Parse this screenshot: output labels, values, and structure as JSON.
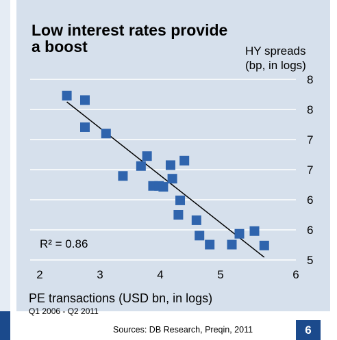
{
  "title": "Low interest rates provide a boost",
  "colors": {
    "panel": "#d6e0ec",
    "marker": "#2f64ad",
    "navy": "#1b4a8c",
    "grid": "#ffffff",
    "trend": "#000000"
  },
  "footer": {
    "period": "Q1 2006 - Q2 2011",
    "sources": "Sources: DB Research, Preqin, 2011",
    "page_number": "6"
  },
  "chart_data": {
    "type": "scatter",
    "title": "Low interest rates provide a boost",
    "xlabel": "PE transactions (USD bn, in logs)",
    "ylabel": "HY spreads\n(bp, in logs)",
    "xlim": [
      2,
      6
    ],
    "x_ticks": [
      "2",
      "3",
      "4",
      "5",
      "6"
    ],
    "y_ticks": [
      "8",
      "8",
      "7",
      "7",
      "6",
      "6",
      "5"
    ],
    "grid": true,
    "annotation": "R² = 0.86",
    "points": [
      {
        "x": 2.45,
        "y": 7.82
      },
      {
        "x": 2.75,
        "y": 7.77
      },
      {
        "x": 2.75,
        "y": 7.47
      },
      {
        "x": 3.1,
        "y": 7.4
      },
      {
        "x": 3.38,
        "y": 6.93
      },
      {
        "x": 3.68,
        "y": 7.04
      },
      {
        "x": 3.78,
        "y": 7.15
      },
      {
        "x": 3.88,
        "y": 6.82
      },
      {
        "x": 3.98,
        "y": 6.82
      },
      {
        "x": 4.05,
        "y": 6.81
      },
      {
        "x": 4.17,
        "y": 7.05
      },
      {
        "x": 4.2,
        "y": 6.9
      },
      {
        "x": 4.3,
        "y": 6.5
      },
      {
        "x": 4.33,
        "y": 6.66
      },
      {
        "x": 4.4,
        "y": 7.1
      },
      {
        "x": 4.6,
        "y": 6.44
      },
      {
        "x": 4.65,
        "y": 6.27
      },
      {
        "x": 4.82,
        "y": 6.17
      },
      {
        "x": 5.15,
        "y": 6.17
      },
      {
        "x": 5.25,
        "y": 6.29
      },
      {
        "x": 5.45,
        "y": 6.32
      },
      {
        "x": 5.58,
        "y": 6.16
      }
    ],
    "trendline": [
      {
        "x": 2.45,
        "y": 7.75
      },
      {
        "x": 5.58,
        "y": 6.03
      }
    ]
  }
}
